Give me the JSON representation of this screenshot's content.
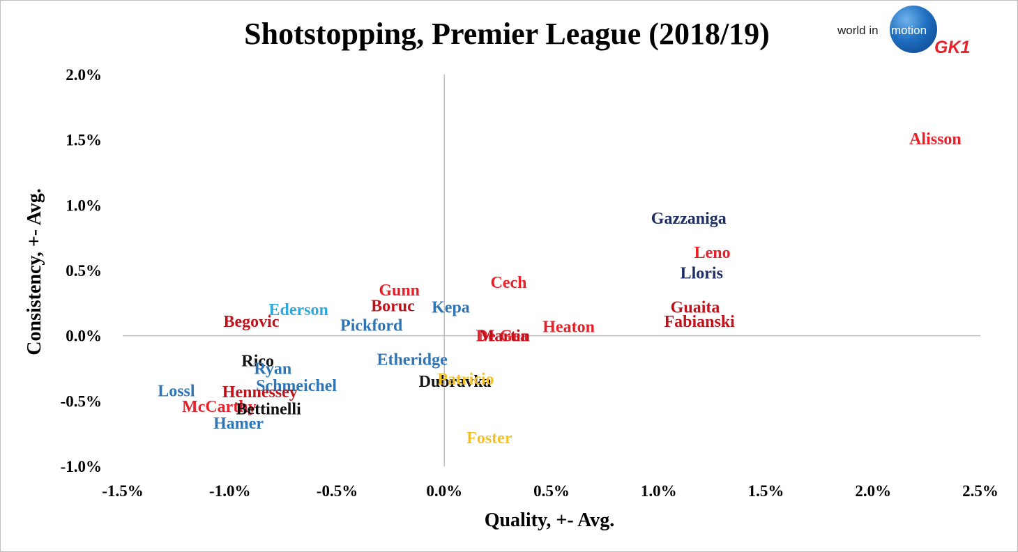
{
  "colors": {
    "red": "#e8202a",
    "dark_red": "#c0121a",
    "navy": "#1f2f66",
    "blue": "#2e75b6",
    "light_blue": "#32a9dc",
    "black": "#111111",
    "gold": "#f2c12e",
    "axis": "#bfbfbf"
  },
  "logo": {
    "text_world_in": "world in",
    "text_motion": "motion",
    "text_gk": "GK1"
  },
  "chart_data": {
    "type": "scatter",
    "title": "Shotstopping, Premier League (2018/19)",
    "xlabel": "Quality, +- Avg.",
    "ylabel": "Consistency, +- Avg.",
    "xlim": [
      -1.5,
      2.5
    ],
    "ylim": [
      -1.0,
      2.0
    ],
    "x_ticks": [
      -1.5,
      -1.0,
      -0.5,
      0.0,
      0.5,
      1.0,
      1.5,
      2.0,
      2.5
    ],
    "y_ticks": [
      -1.0,
      -0.5,
      0.0,
      0.5,
      1.0,
      1.5,
      2.0
    ],
    "x_tick_labels": [
      "-1.5%",
      "-1.0%",
      "-0.5%",
      "0.0%",
      "0.5%",
      "1.0%",
      "1.5%",
      "2.0%",
      "2.5%"
    ],
    "y_tick_labels": [
      "-1.0%",
      "-0.5%",
      "0.0%",
      "0.5%",
      "1.0%",
      "1.5%",
      "2.0%"
    ],
    "grid": false,
    "legend": "none",
    "points": [
      {
        "label": "Alisson",
        "x": 2.29,
        "y": 1.51,
        "color": "red"
      },
      {
        "label": "Gazzaniga",
        "x": 1.14,
        "y": 0.9,
        "color": "navy"
      },
      {
        "label": "Leno",
        "x": 1.25,
        "y": 0.64,
        "color": "red"
      },
      {
        "label": "Lloris",
        "x": 1.2,
        "y": 0.48,
        "color": "navy"
      },
      {
        "label": "Guaita",
        "x": 1.17,
        "y": 0.22,
        "color": "dark_red"
      },
      {
        "label": "Fabianski",
        "x": 1.19,
        "y": 0.11,
        "color": "dark_red"
      },
      {
        "label": "Cech",
        "x": 0.3,
        "y": 0.41,
        "color": "red"
      },
      {
        "label": "Heaton",
        "x": 0.58,
        "y": 0.07,
        "color": "red"
      },
      {
        "label": "De Gea",
        "x": 0.27,
        "y": 0.0,
        "color": "red"
      },
      {
        "label": "Martin",
        "x": 0.28,
        "y": 0.0,
        "color": "dark_red"
      },
      {
        "label": "Gunn",
        "x": -0.21,
        "y": 0.35,
        "color": "red"
      },
      {
        "label": "Boruc",
        "x": -0.24,
        "y": 0.23,
        "color": "dark_red"
      },
      {
        "label": "Kepa",
        "x": 0.03,
        "y": 0.22,
        "color": "blue"
      },
      {
        "label": "Pickford",
        "x": -0.34,
        "y": 0.08,
        "color": "blue"
      },
      {
        "label": "Ederson",
        "x": -0.68,
        "y": 0.2,
        "color": "light_blue"
      },
      {
        "label": "Begovic",
        "x": -0.9,
        "y": 0.11,
        "color": "dark_red"
      },
      {
        "label": "Etheridge",
        "x": -0.15,
        "y": -0.18,
        "color": "blue"
      },
      {
        "label": "Dubravka",
        "x": 0.05,
        "y": -0.35,
        "color": "black"
      },
      {
        "label": "Patricio",
        "x": 0.1,
        "y": -0.33,
        "color": "gold"
      },
      {
        "label": "Foster",
        "x": 0.21,
        "y": -0.78,
        "color": "gold"
      },
      {
        "label": "Rico",
        "x": -0.87,
        "y": -0.19,
        "color": "black"
      },
      {
        "label": "Ryan",
        "x": -0.8,
        "y": -0.25,
        "color": "blue"
      },
      {
        "label": "Schmeichel",
        "x": -0.69,
        "y": -0.38,
        "color": "blue"
      },
      {
        "label": "Hennessey",
        "x": -0.86,
        "y": -0.43,
        "color": "dark_red"
      },
      {
        "label": "Lossl",
        "x": -1.25,
        "y": -0.42,
        "color": "blue"
      },
      {
        "label": "McCarthy",
        "x": -1.05,
        "y": -0.54,
        "color": "red"
      },
      {
        "label": "Bettinelli",
        "x": -0.82,
        "y": -0.56,
        "color": "black"
      },
      {
        "label": "Hamer",
        "x": -0.96,
        "y": -0.67,
        "color": "blue"
      }
    ]
  }
}
